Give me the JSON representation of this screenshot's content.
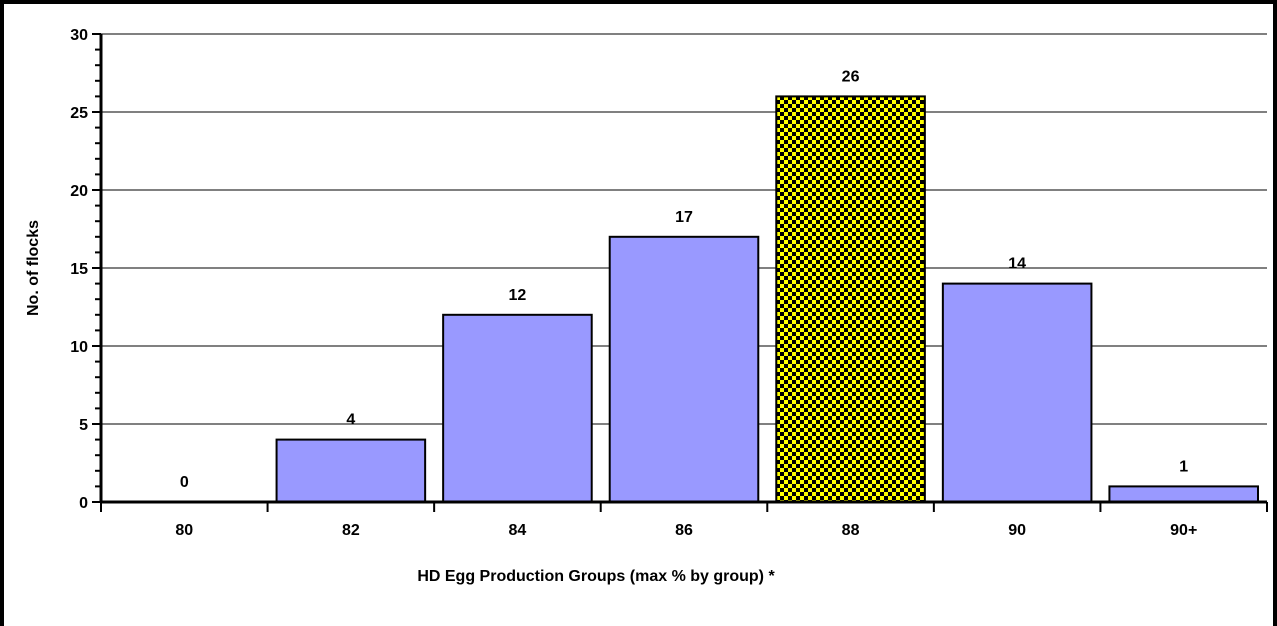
{
  "chart_data": {
    "type": "bar",
    "categories": [
      "80",
      "82",
      "84",
      "86",
      "88",
      "90",
      "90+"
    ],
    "values": [
      0,
      4,
      12,
      17,
      26,
      14,
      1
    ],
    "data_labels": [
      "0",
      "4",
      "12",
      "17",
      "26",
      "14",
      "1"
    ],
    "highlight_index": 4,
    "xlabel": "HD Egg Production Groups (max % by group) *",
    "ylabel": "No. of flocks",
    "ylim": [
      0,
      30
    ],
    "yticks": [
      "0",
      "5",
      "10",
      "15",
      "20",
      "25",
      "30"
    ],
    "grid": true,
    "legend": "none",
    "colors": {
      "bar_fill": "#9999ff",
      "highlight_fill_a": "#ffff00",
      "highlight_fill_b": "#000000",
      "gridline": "#000000"
    }
  }
}
